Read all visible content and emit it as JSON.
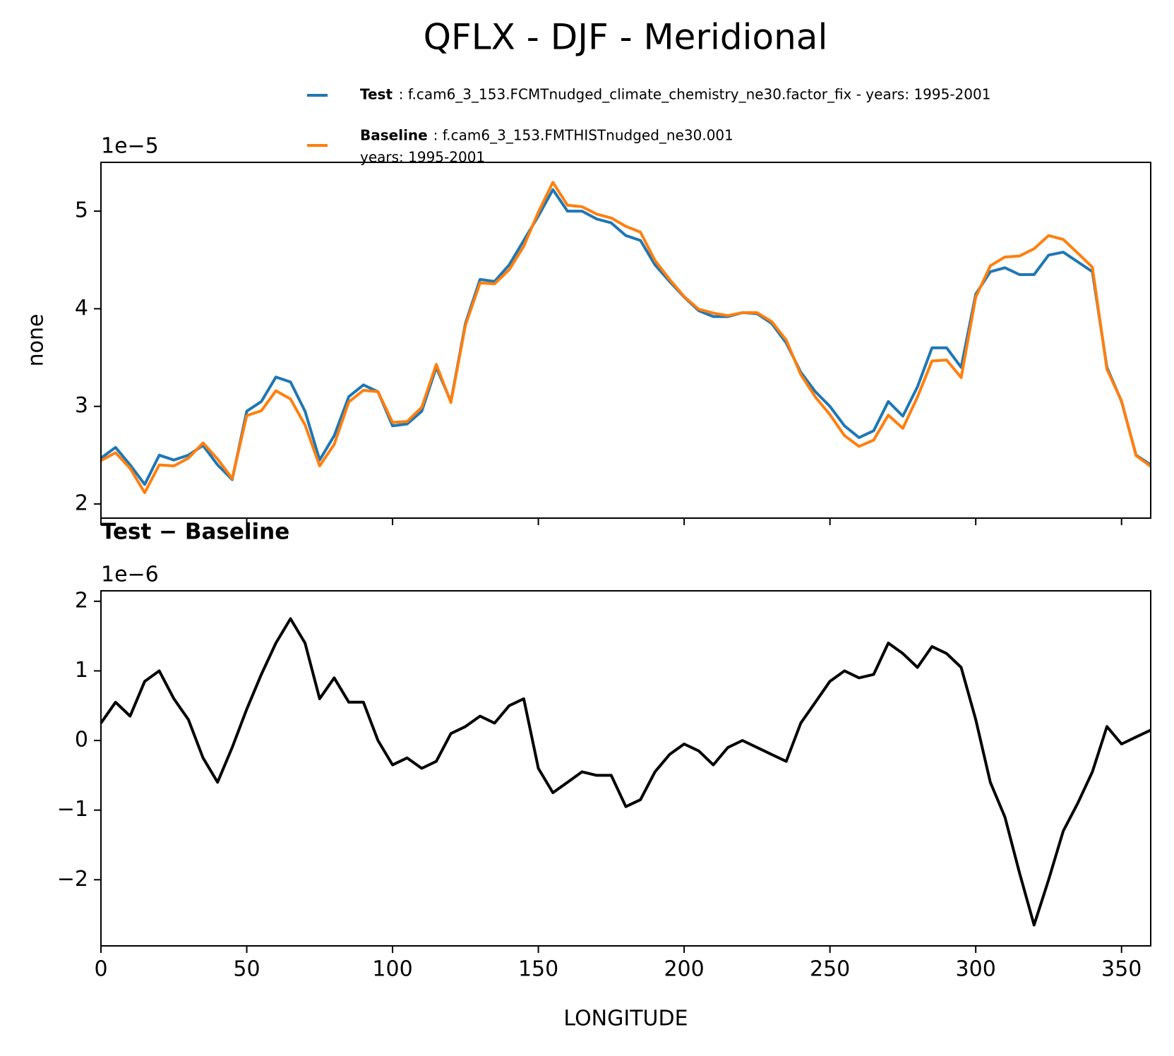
{
  "title": "QFLX - DJF - Meridional",
  "chart_data": [
    {
      "type": "line",
      "ylabel": "none",
      "offset_label": "1e−5",
      "x": [
        0,
        5,
        10,
        15,
        20,
        25,
        30,
        35,
        40,
        45,
        50,
        55,
        60,
        65,
        70,
        75,
        80,
        85,
        90,
        95,
        100,
        105,
        110,
        115,
        120,
        125,
        130,
        135,
        140,
        145,
        150,
        155,
        160,
        165,
        170,
        175,
        180,
        185,
        190,
        195,
        200,
        205,
        210,
        215,
        220,
        225,
        230,
        235,
        240,
        245,
        250,
        255,
        260,
        265,
        270,
        275,
        280,
        285,
        290,
        295,
        300,
        305,
        310,
        315,
        320,
        325,
        330,
        335,
        340,
        345,
        350,
        355,
        360
      ],
      "series": [
        {
          "name": "Test",
          "description": [
            ": f.cam6_3_153.FCMTnudged_climate_chemistry_ne30.factor_fix - years: 1995-2001"
          ],
          "color": "#1f77b4",
          "values": [
            2.47,
            2.58,
            2.4,
            2.2,
            2.5,
            2.45,
            2.5,
            2.6,
            2.4,
            2.25,
            2.95,
            3.05,
            3.3,
            3.25,
            2.95,
            2.45,
            2.7,
            3.1,
            3.22,
            3.15,
            2.8,
            2.82,
            2.95,
            3.4,
            3.05,
            3.85,
            4.3,
            4.28,
            4.45,
            4.7,
            4.95,
            5.22,
            5.0,
            5.0,
            4.92,
            4.88,
            4.75,
            4.7,
            4.45,
            4.28,
            4.12,
            3.98,
            3.92,
            3.92,
            3.96,
            3.95,
            3.85,
            3.65,
            3.35,
            3.15,
            3.0,
            2.8,
            2.68,
            2.75,
            3.05,
            2.9,
            3.2,
            3.6,
            3.6,
            3.4,
            4.15,
            4.38,
            4.42,
            4.35,
            4.35,
            4.55,
            4.58,
            4.48,
            4.38,
            3.4,
            3.05,
            2.5,
            2.4
          ]
        },
        {
          "name": "Baseline",
          "description": [
            ": f.cam6_3_153.FMTHISTnudged_ne30.001",
            "years: 1995-2001"
          ],
          "color": "#ff7f0e",
          "values": [
            2.445,
            2.525,
            2.365,
            2.115,
            2.4,
            2.39,
            2.47,
            2.625,
            2.46,
            2.26,
            2.905,
            2.955,
            3.16,
            3.075,
            2.81,
            2.39,
            2.61,
            3.045,
            3.165,
            3.15,
            2.835,
            2.845,
            2.99,
            3.43,
            3.04,
            3.83,
            4.265,
            4.255,
            4.4,
            4.64,
            4.99,
            5.295,
            5.06,
            5.045,
            4.97,
            4.93,
            4.845,
            4.785,
            4.495,
            4.3,
            4.125,
            3.995,
            3.955,
            3.93,
            3.96,
            3.96,
            3.87,
            3.68,
            3.325,
            3.095,
            2.915,
            2.7,
            2.59,
            2.655,
            2.91,
            2.775,
            3.095,
            3.465,
            3.475,
            3.295,
            4.12,
            4.44,
            4.53,
            4.54,
            4.615,
            4.75,
            4.71,
            4.57,
            4.425,
            3.38,
            3.055,
            2.495,
            2.385
          ]
        }
      ],
      "xlim": [
        0,
        360
      ],
      "xticks": [
        0,
        50,
        100,
        150,
        200,
        250,
        300,
        350
      ],
      "xticklabels": false,
      "ylim": [
        1.855,
        5.5
      ],
      "yticks": [
        2,
        3,
        4,
        5
      ]
    },
    {
      "type": "line",
      "title": "Test − Baseline",
      "offset_label": "1e−6",
      "xlabel": "LONGITUDE",
      "x": [
        0,
        5,
        10,
        15,
        20,
        25,
        30,
        35,
        40,
        45,
        50,
        55,
        60,
        65,
        70,
        75,
        80,
        85,
        90,
        95,
        100,
        105,
        110,
        115,
        120,
        125,
        130,
        135,
        140,
        145,
        150,
        155,
        160,
        165,
        170,
        175,
        180,
        185,
        190,
        195,
        200,
        205,
        210,
        215,
        220,
        225,
        230,
        235,
        240,
        245,
        250,
        255,
        260,
        265,
        270,
        275,
        280,
        285,
        290,
        295,
        300,
        305,
        310,
        315,
        320,
        325,
        330,
        335,
        340,
        345,
        350,
        355,
        360
      ],
      "color": "#000000",
      "values": [
        0.25,
        0.55,
        0.35,
        0.85,
        1.0,
        0.6,
        0.3,
        -0.25,
        -0.6,
        -0.1,
        0.45,
        0.95,
        1.4,
        1.75,
        1.4,
        0.6,
        0.9,
        0.55,
        0.55,
        0.0,
        -0.35,
        -0.25,
        -0.4,
        -0.3,
        0.1,
        0.2,
        0.35,
        0.25,
        0.5,
        0.6,
        -0.4,
        -0.75,
        -0.6,
        -0.45,
        -0.5,
        -0.5,
        -0.95,
        -0.85,
        -0.45,
        -0.2,
        -0.05,
        -0.15,
        -0.35,
        -0.1,
        0.0,
        -0.1,
        -0.2,
        -0.3,
        0.25,
        0.55,
        0.85,
        1.0,
        0.9,
        0.95,
        1.4,
        1.25,
        1.05,
        1.35,
        1.25,
        1.05,
        0.3,
        -0.6,
        -1.1,
        -1.9,
        -2.65,
        -2.0,
        -1.3,
        -0.9,
        -0.45,
        0.2,
        -0.05,
        0.05,
        0.15
      ],
      "xlim": [
        0,
        360
      ],
      "xticks": [
        0,
        50,
        100,
        150,
        200,
        250,
        300,
        350
      ],
      "xticklabels": true,
      "ylim": [
        -2.95,
        2.15
      ],
      "yticks": [
        {
          "value": -2,
          "label": "−2"
        },
        {
          "value": -1,
          "label": "−1"
        },
        0,
        1,
        2
      ]
    }
  ]
}
